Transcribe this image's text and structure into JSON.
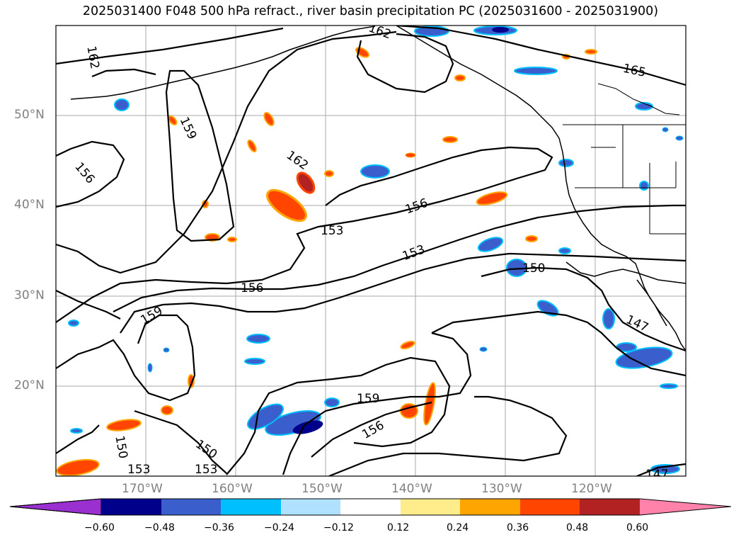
{
  "title": "2025031400 F048 500 hPa refract., river basin precipitation PC (2025031600 - 2025031900)",
  "axes": {
    "lat_labels": [
      "50°N",
      "40°N",
      "30°N",
      "20°N"
    ],
    "lon_labels": [
      "170°W",
      "160°W",
      "150°W",
      "140°W",
      "130°W",
      "120°W"
    ]
  },
  "contour_labels": [
    "162",
    "162",
    "165",
    "159",
    "156",
    "162",
    "156",
    "153",
    "153",
    "156",
    "150",
    "159",
    "147",
    "159",
    "156",
    "150",
    "153",
    "153",
    "147",
    "150"
  ],
  "colorbar": {
    "tick_labels": [
      "−0.60",
      "−0.48",
      "−0.36",
      "−0.24",
      "−0.12",
      "0.12",
      "0.24",
      "0.36",
      "0.48",
      "0.60"
    ],
    "colors": [
      "#9b30d0",
      "#00008b",
      "#3a5fcd",
      "#00bfff",
      "#b0e2ff",
      "#ffffff",
      "#ffec8b",
      "#ffa500",
      "#ff4500",
      "#b22222",
      "#ff82ab"
    ]
  }
}
